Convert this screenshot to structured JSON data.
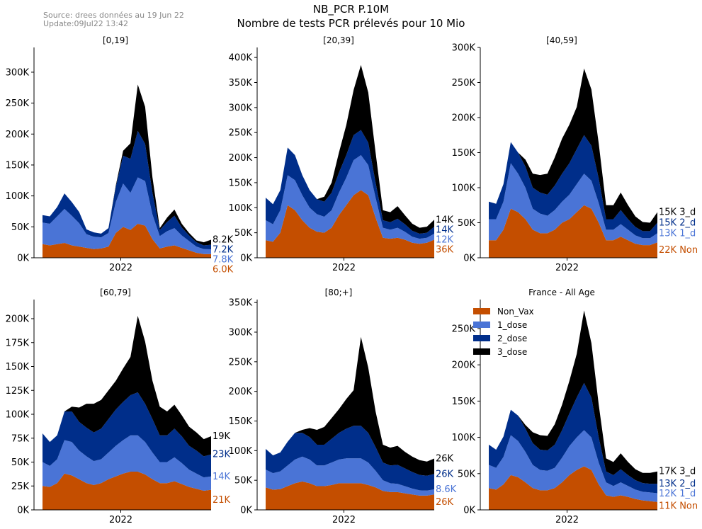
{
  "header": {
    "source": "Source: drees données au 19 Jun 22",
    "update": "Update:09Jul22 13:42",
    "title": "NB_PCR P.10M",
    "subtitle": "Nombre de tests PCR prélevés pour 10 Mio"
  },
  "colors": {
    "Non_Vax": "#c44e00",
    "1_dose": "#4a74d6",
    "2_dose": "#002e8a",
    "3_dose": "#000000"
  },
  "chart_data": [
    {
      "type": "area",
      "stacked": true,
      "title": "[0,19]",
      "xlabel": "2022",
      "ylim": [
        0,
        340000
      ],
      "yticks": [
        "0K",
        "50K",
        "100K",
        "150K",
        "200K",
        "250K",
        "300K"
      ],
      "end_labels": [
        "8.2K",
        "7.2K",
        "7.8K",
        "6.0K"
      ],
      "series": [
        {
          "name": "Non_Vax",
          "values": [
            22000,
            20000,
            22000,
            24000,
            20000,
            18000,
            16000,
            14000,
            15000,
            18000,
            40000,
            50000,
            45000,
            55000,
            52000,
            30000,
            15000,
            18000,
            20000,
            16000,
            12000,
            8000,
            6000,
            6000
          ]
        },
        {
          "name": "1_dose",
          "values": [
            35000,
            35000,
            45000,
            55000,
            48000,
            38000,
            22000,
            20000,
            18000,
            22000,
            50000,
            70000,
            60000,
            75000,
            72000,
            40000,
            20000,
            25000,
            28000,
            20000,
            15000,
            10000,
            8000,
            7800
          ]
        },
        {
          "name": "2_dose",
          "values": [
            12000,
            12000,
            15000,
            25000,
            22000,
            18000,
            8000,
            7000,
            6000,
            8000,
            25000,
            45000,
            55000,
            75000,
            60000,
            35000,
            10000,
            15000,
            20000,
            13000,
            9000,
            7000,
            6000,
            7200
          ]
        },
        {
          "name": "3_dose",
          "values": [
            0,
            0,
            0,
            0,
            0,
            0,
            0,
            0,
            0,
            0,
            2000,
            8000,
            25000,
            75000,
            60000,
            25000,
            3000,
            7000,
            10000,
            6000,
            4000,
            3000,
            5000,
            8200
          ]
        }
      ]
    },
    {
      "type": "area",
      "stacked": true,
      "title": "[20,39]",
      "xlabel": "2022",
      "ylim": [
        0,
        420000
      ],
      "yticks": [
        "0K",
        "50K",
        "100K",
        "150K",
        "200K",
        "250K",
        "300K",
        "350K",
        "400K"
      ],
      "end_labels": [
        "14K",
        "14K",
        "12K",
        "36K"
      ],
      "series": [
        {
          "name": "Non_Vax",
          "values": [
            35000,
            32000,
            50000,
            105000,
            95000,
            75000,
            60000,
            52000,
            50000,
            60000,
            85000,
            105000,
            125000,
            135000,
            125000,
            80000,
            40000,
            38000,
            40000,
            36000,
            30000,
            28000,
            30000,
            36000
          ]
        },
        {
          "name": "1_dose",
          "values": [
            40000,
            35000,
            45000,
            60000,
            60000,
            50000,
            40000,
            35000,
            32000,
            35000,
            45000,
            55000,
            70000,
            70000,
            60000,
            40000,
            20000,
            18000,
            20000,
            16000,
            12000,
            10000,
            10000,
            12000
          ]
        },
        {
          "name": "2_dose",
          "values": [
            45000,
            40000,
            40000,
            55000,
            50000,
            40000,
            35000,
            30000,
            30000,
            35000,
            40000,
            45000,
            50000,
            50000,
            45000,
            30000,
            15000,
            15000,
            18000,
            15000,
            12000,
            10000,
            10000,
            14000
          ]
        },
        {
          "name": "3_dose",
          "values": [
            0,
            0,
            0,
            0,
            0,
            0,
            0,
            0,
            10000,
            20000,
            40000,
            60000,
            90000,
            130000,
            100000,
            60000,
            20000,
            20000,
            25000,
            18000,
            14000,
            12000,
            12000,
            14000
          ]
        }
      ]
    },
    {
      "type": "area",
      "stacked": true,
      "title": "[40,59]",
      "xlabel": "2022",
      "ylim": [
        0,
        300000
      ],
      "yticks": [
        "0K",
        "50K",
        "100K",
        "150K",
        "200K",
        "250K",
        "300K"
      ],
      "end_labels": [
        "15K 3_d",
        "15K 2_d",
        "13K 1_d",
        "22K Non"
      ],
      "series": [
        {
          "name": "Non_Vax",
          "values": [
            25000,
            25000,
            40000,
            70000,
            65000,
            55000,
            40000,
            35000,
            35000,
            40000,
            50000,
            55000,
            65000,
            75000,
            70000,
            50000,
            25000,
            25000,
            30000,
            25000,
            20000,
            18000,
            18000,
            22000
          ]
        },
        {
          "name": "1_dose",
          "values": [
            30000,
            30000,
            40000,
            65000,
            55000,
            45000,
            30000,
            28000,
            25000,
            28000,
            30000,
            35000,
            40000,
            45000,
            40000,
            28000,
            15000,
            15000,
            18000,
            15000,
            12000,
            10000,
            10000,
            13000
          ]
        },
        {
          "name": "2_dose",
          "values": [
            25000,
            22000,
            25000,
            30000,
            30000,
            30000,
            30000,
            30000,
            30000,
            35000,
            40000,
            45000,
            50000,
            55000,
            50000,
            35000,
            15000,
            15000,
            20000,
            15000,
            12000,
            10000,
            10000,
            15000
          ]
        },
        {
          "name": "3_dose",
          "values": [
            0,
            0,
            0,
            0,
            0,
            10000,
            20000,
            25000,
            30000,
            40000,
            50000,
            55000,
            60000,
            95000,
            80000,
            50000,
            20000,
            20000,
            25000,
            20000,
            15000,
            13000,
            12000,
            15000
          ]
        }
      ]
    },
    {
      "type": "area",
      "stacked": true,
      "title": "[60,79]",
      "xlabel": "2022",
      "ylim": [
        0,
        220000
      ],
      "yticks": [
        "0K",
        "25K",
        "50K",
        "75K",
        "100K",
        "125K",
        "150K",
        "175K",
        "200K"
      ],
      "end_labels": [
        "19K",
        "23K",
        "14K",
        "21K"
      ],
      "series": [
        {
          "name": "Non_Vax",
          "values": [
            25000,
            24000,
            28000,
            38000,
            36000,
            32000,
            28000,
            26000,
            28000,
            32000,
            35000,
            38000,
            40000,
            40000,
            37000,
            32000,
            28000,
            28000,
            30000,
            27000,
            24000,
            22000,
            20000,
            21000
          ]
        },
        {
          "name": "1_dose",
          "values": [
            25000,
            22000,
            25000,
            35000,
            35000,
            30000,
            28000,
            25000,
            25000,
            28000,
            32000,
            35000,
            38000,
            38000,
            34000,
            28000,
            22000,
            22000,
            25000,
            22000,
            18000,
            16000,
            14000,
            14000
          ]
        },
        {
          "name": "2_dose",
          "values": [
            30000,
            25000,
            25000,
            30000,
            32000,
            30000,
            30000,
            30000,
            32000,
            35000,
            38000,
            40000,
            42000,
            45000,
            40000,
            35000,
            28000,
            28000,
            30000,
            28000,
            25000,
            24000,
            22000,
            23000
          ]
        },
        {
          "name": "3_dose",
          "values": [
            0,
            0,
            0,
            0,
            5000,
            15000,
            25000,
            30000,
            30000,
            30000,
            30000,
            35000,
            40000,
            80000,
            65000,
            40000,
            30000,
            25000,
            25000,
            22000,
            20000,
            19000,
            18000,
            19000
          ]
        }
      ]
    },
    {
      "type": "area",
      "stacked": true,
      "title": "[80;+]",
      "xlabel": "2022",
      "ylim": [
        0,
        355000
      ],
      "yticks": [
        "0K",
        "50K",
        "100K",
        "150K",
        "200K",
        "250K",
        "300K",
        "350K"
      ],
      "end_labels": [
        "26K",
        "26K",
        "8.6K",
        "26K"
      ],
      "series": [
        {
          "name": "Non_Vax",
          "values": [
            38000,
            34000,
            35000,
            40000,
            45000,
            48000,
            45000,
            40000,
            40000,
            42000,
            45000,
            45000,
            45000,
            45000,
            42000,
            38000,
            32000,
            30000,
            30000,
            28000,
            26000,
            24000,
            24000,
            26000
          ]
        },
        {
          "name": "1_dose",
          "values": [
            30000,
            28000,
            30000,
            35000,
            40000,
            42000,
            40000,
            35000,
            35000,
            38000,
            40000,
            42000,
            42000,
            42000,
            38000,
            28000,
            18000,
            15000,
            14000,
            12000,
            10000,
            9000,
            8600,
            8600
          ]
        },
        {
          "name": "2_dose",
          "values": [
            35000,
            30000,
            32000,
            40000,
            45000,
            40000,
            38000,
            35000,
            35000,
            40000,
            45000,
            50000,
            55000,
            55000,
            50000,
            40000,
            30000,
            30000,
            32000,
            30000,
            28000,
            26000,
            25000,
            26000
          ]
        },
        {
          "name": "3_dose",
          "values": [
            0,
            0,
            0,
            0,
            0,
            5000,
            15000,
            25000,
            30000,
            35000,
            40000,
            50000,
            60000,
            150000,
            110000,
            60000,
            30000,
            30000,
            32000,
            28000,
            26000,
            25000,
            24000,
            26000
          ]
        }
      ]
    },
    {
      "type": "area",
      "stacked": true,
      "title": "France - All Age",
      "xlabel": "2022",
      "ylim": [
        0,
        290000
      ],
      "yticks": [
        "0K",
        "50K",
        "100K",
        "150K",
        "200K",
        "250K"
      ],
      "end_labels": [
        "17K 3_d",
        "13K 2_d",
        "12K 1_d",
        "11K Non"
      ],
      "legend": {
        "position": "top-left",
        "entries": [
          "Non_Vax",
          "1_dose",
          "2_dose",
          "3_dose"
        ]
      },
      "series": [
        {
          "name": "Non_Vax",
          "values": [
            30000,
            28000,
            35000,
            48000,
            45000,
            38000,
            30000,
            27000,
            27000,
            30000,
            38000,
            48000,
            55000,
            60000,
            55000,
            35000,
            20000,
            18000,
            20000,
            18000,
            15000,
            13000,
            12000,
            11000
          ]
        },
        {
          "name": "1_dose",
          "values": [
            32000,
            30000,
            38000,
            55000,
            50000,
            42000,
            32000,
            28000,
            27000,
            28000,
            34000,
            40000,
            45000,
            50000,
            45000,
            30000,
            18000,
            15000,
            18000,
            15000,
            13000,
            12000,
            12000,
            12000
          ]
        },
        {
          "name": "2_dose",
          "values": [
            28000,
            25000,
            28000,
            35000,
            35000,
            32000,
            30000,
            28000,
            28000,
            32000,
            38000,
            45000,
            55000,
            65000,
            55000,
            35000,
            15000,
            15000,
            18000,
            15000,
            13000,
            12000,
            12000,
            13000
          ]
        },
        {
          "name": "3_dose",
          "values": [
            0,
            0,
            0,
            0,
            0,
            5000,
            15000,
            20000,
            20000,
            28000,
            35000,
            45000,
            60000,
            100000,
            75000,
            45000,
            18000,
            18000,
            22000,
            18000,
            15000,
            14000,
            15000,
            17000
          ]
        }
      ]
    }
  ]
}
